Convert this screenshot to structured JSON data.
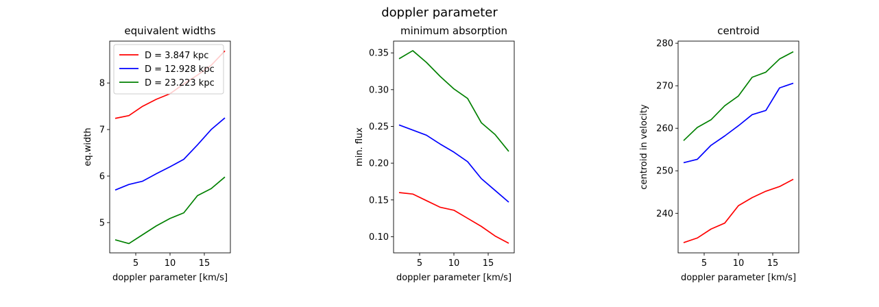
{
  "figure_title": "doppler parameter",
  "chart_data": [
    {
      "type": "line",
      "title": "equivalent widths",
      "xlabel": "doppler parameter [km/s]",
      "ylabel": "eq.width",
      "xlim": [
        1.2,
        18.8
      ],
      "ylim": [
        4.35,
        8.9
      ],
      "xticks": [
        5,
        10,
        15
      ],
      "yticks": [
        5,
        6,
        7,
        8
      ],
      "x": [
        2,
        4,
        6,
        8,
        10,
        12,
        14,
        16,
        18
      ],
      "legend": "top-left",
      "series": [
        {
          "name": "D = 3.847 kpc",
          "color": "#ff0000",
          "values": [
            7.24,
            7.3,
            7.5,
            7.65,
            7.77,
            7.98,
            8.17,
            8.38,
            8.69
          ]
        },
        {
          "name": "D = 12.928 kpc",
          "color": "#0000ff",
          "values": [
            5.7,
            5.82,
            5.89,
            6.05,
            6.2,
            6.36,
            6.67,
            7.0,
            7.25
          ]
        },
        {
          "name": "D = 23.223 kpc",
          "color": "#008000",
          "values": [
            4.63,
            4.55,
            4.74,
            4.93,
            5.09,
            5.21,
            5.58,
            5.73,
            5.98
          ]
        }
      ]
    },
    {
      "type": "line",
      "title": "minimum absorption",
      "xlabel": "doppler parameter [km/s]",
      "ylabel": "min. flux",
      "xlim": [
        1.2,
        18.8
      ],
      "ylim": [
        0.078,
        0.366
      ],
      "xticks": [
        5,
        10,
        15
      ],
      "yticks": [
        0.1,
        0.15,
        0.2,
        0.25,
        0.3,
        0.35
      ],
      "ytick_labels": [
        "0.10",
        "0.15",
        "0.20",
        "0.25",
        "0.30",
        "0.35"
      ],
      "x": [
        2,
        4,
        6,
        8,
        10,
        12,
        14,
        16,
        18
      ],
      "series": [
        {
          "color": "#ff0000",
          "values": [
            0.16,
            0.158,
            0.149,
            0.14,
            0.136,
            0.125,
            0.114,
            0.101,
            0.091
          ]
        },
        {
          "color": "#0000ff",
          "values": [
            0.252,
            0.245,
            0.238,
            0.226,
            0.215,
            0.202,
            0.179,
            0.163,
            0.147
          ]
        },
        {
          "color": "#008000",
          "values": [
            0.342,
            0.353,
            0.337,
            0.318,
            0.301,
            0.288,
            0.255,
            0.239,
            0.216
          ]
        }
      ]
    },
    {
      "type": "line",
      "title": "centroid",
      "xlabel": "doppler parameter [km/s]",
      "ylabel": "centroid in velocity",
      "xlim": [
        1.2,
        18.8
      ],
      "ylim": [
        230.7,
        280.5
      ],
      "xticks": [
        5,
        10,
        15
      ],
      "yticks": [
        240,
        250,
        260,
        270,
        280
      ],
      "x": [
        2,
        4,
        6,
        8,
        10,
        12,
        14,
        16,
        18
      ],
      "series": [
        {
          "color": "#ff0000",
          "values": [
            233.1,
            234.2,
            236.3,
            237.7,
            241.8,
            243.7,
            245.2,
            246.3,
            248.0
          ]
        },
        {
          "color": "#0000ff",
          "values": [
            251.9,
            252.7,
            256.0,
            258.2,
            260.6,
            263.2,
            264.2,
            269.5,
            270.6
          ]
        },
        {
          "color": "#008000",
          "values": [
            257.1,
            260.2,
            262.0,
            265.3,
            267.6,
            272.0,
            273.2,
            276.3,
            278.0
          ]
        }
      ]
    }
  ]
}
